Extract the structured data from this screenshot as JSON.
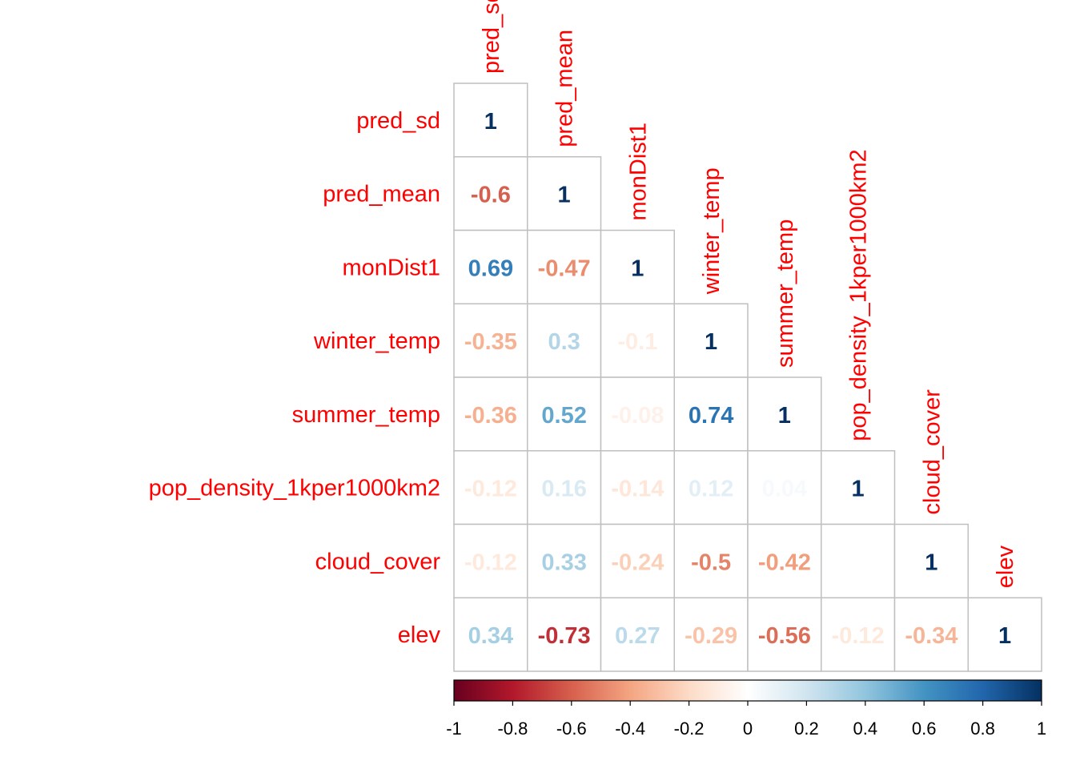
{
  "chart_data": {
    "type": "heatmap",
    "variables": [
      "pred_sd",
      "pred_mean",
      "monDist1",
      "winter_temp",
      "summer_temp",
      "pop_density_1kper1000km2",
      "cloud_cover",
      "elev"
    ],
    "matrix_lower": [
      [
        "1"
      ],
      [
        "-0.6",
        "1"
      ],
      [
        "0.69",
        "-0.47",
        "1"
      ],
      [
        "-0.35",
        "0.3",
        "-0.1",
        "1"
      ],
      [
        "-0.36",
        "0.52",
        "-0.08",
        "0.74",
        "1"
      ],
      [
        "-0.12",
        "0.16",
        "-0.14",
        "0.12",
        "0.04",
        "1"
      ],
      [
        "-0.12",
        "0.33",
        "-0.24",
        "-0.5",
        "-0.42",
        "0",
        "1"
      ],
      [
        "0.34",
        "-0.73",
        "0.27",
        "-0.29",
        "-0.56",
        "-0.12",
        "-0.34",
        "1"
      ]
    ],
    "colorbar": {
      "range": [
        -1,
        1
      ],
      "ticks": [
        "-1",
        "-0.8",
        "-0.6",
        "-0.4",
        "-0.2",
        "0",
        "0.2",
        "0.4",
        "0.6",
        "0.8",
        "1"
      ]
    },
    "palette": [
      "#67001f",
      "#b2182b",
      "#d6604d",
      "#f4a582",
      "#fddbc7",
      "#ffffff",
      "#d1e5f0",
      "#92c5de",
      "#4393c3",
      "#2166ac",
      "#053061"
    ],
    "label_color": "#ff0000",
    "grid_color": "#bfbfbf"
  }
}
